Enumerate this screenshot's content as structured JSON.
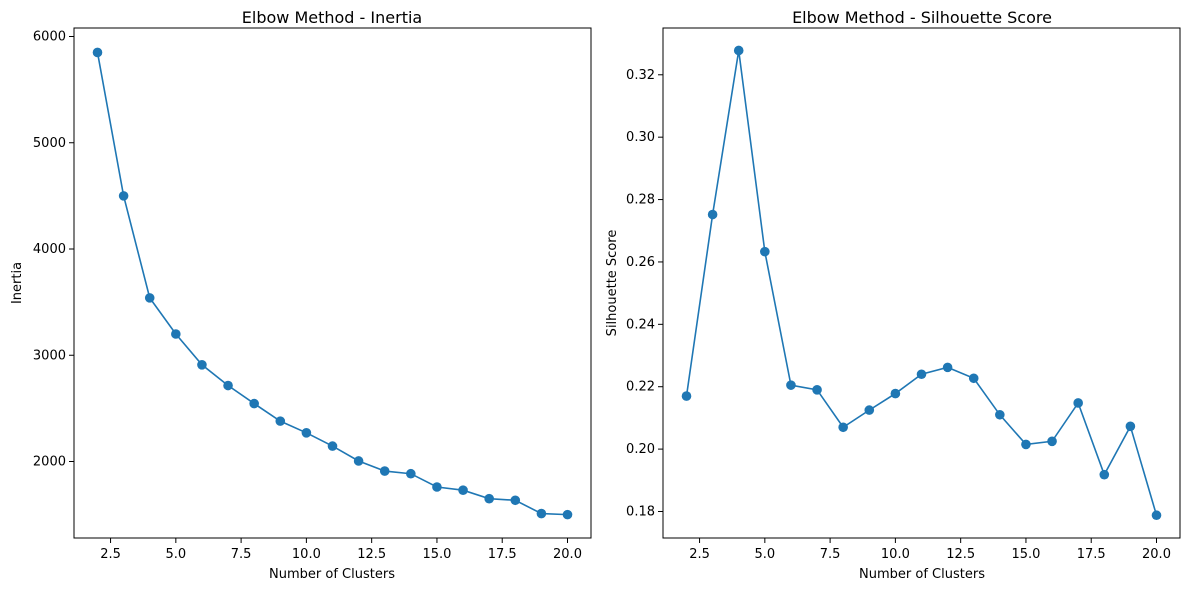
{
  "chart_data": [
    {
      "type": "line",
      "title": "Elbow Method - Inertia",
      "xlabel": "Number of Clusters",
      "ylabel": "Inertia",
      "xlim": [
        1.1,
        20.9
      ],
      "ylim": [
        1280,
        6080
      ],
      "xticks": [
        2.5,
        5.0,
        7.5,
        10.0,
        12.5,
        15.0,
        17.5,
        20.0
      ],
      "xtick_labels": [
        "2.5",
        "5.0",
        "7.5",
        "10.0",
        "12.5",
        "15.0",
        "17.5",
        "20.0"
      ],
      "yticks": [
        2000,
        3000,
        4000,
        5000,
        6000
      ],
      "ytick_labels": [
        "2000",
        "3000",
        "4000",
        "5000",
        "6000"
      ],
      "grid": false,
      "color": "#1f77b4",
      "x": [
        2,
        3,
        4,
        5,
        6,
        7,
        8,
        9,
        10,
        11,
        12,
        13,
        14,
        15,
        16,
        17,
        18,
        19,
        20
      ],
      "y": [
        5850,
        4500,
        3540,
        3200,
        2910,
        2715,
        2545,
        2380,
        2270,
        2145,
        2005,
        1910,
        1885,
        1760,
        1730,
        1650,
        1635,
        1510,
        1500
      ]
    },
    {
      "type": "line",
      "title": "Elbow Method - Silhouette Score",
      "xlabel": "Number of Clusters",
      "ylabel": "Silhouette Score",
      "xlim": [
        1.1,
        20.9
      ],
      "ylim": [
        0.1715,
        0.335
      ],
      "xticks": [
        2.5,
        5.0,
        7.5,
        10.0,
        12.5,
        15.0,
        17.5,
        20.0
      ],
      "xtick_labels": [
        "2.5",
        "5.0",
        "7.5",
        "10.0",
        "12.5",
        "15.0",
        "17.5",
        "20.0"
      ],
      "yticks": [
        0.18,
        0.2,
        0.22,
        0.24,
        0.26,
        0.28,
        0.3,
        0.32
      ],
      "ytick_labels": [
        "0.18",
        "0.20",
        "0.22",
        "0.24",
        "0.26",
        "0.28",
        "0.30",
        "0.32"
      ],
      "grid": false,
      "color": "#1f77b4",
      "x": [
        2,
        3,
        4,
        5,
        6,
        7,
        8,
        9,
        10,
        11,
        12,
        13,
        14,
        15,
        16,
        17,
        18,
        19,
        20
      ],
      "y": [
        0.217,
        0.2752,
        0.3278,
        0.2633,
        0.2205,
        0.219,
        0.207,
        0.2125,
        0.2178,
        0.224,
        0.2262,
        0.2227,
        0.211,
        0.2015,
        0.2025,
        0.2148,
        0.1918,
        0.2073,
        0.1788
      ]
    }
  ]
}
